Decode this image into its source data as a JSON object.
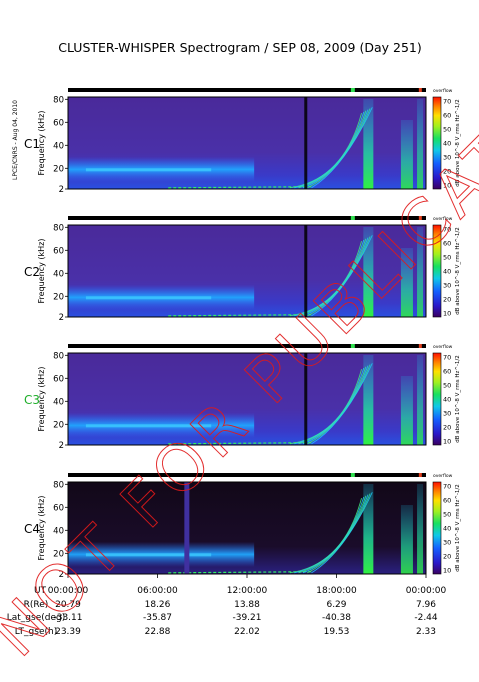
{
  "title": "CLUSTER-WHISPER Spectrogram / SEP 08, 2009 (Day 251)",
  "side_label": "LPCE/CNRS - Aug 04, 2010",
  "watermark": "NOT FOR PUBLICATION",
  "overflow_label": "overflow",
  "panels": [
    {
      "name": "C1",
      "label_color": "#000000"
    },
    {
      "name": "C2",
      "label_color": "#000000"
    },
    {
      "name": "C3",
      "label_color": "#1fae2a"
    },
    {
      "name": "C4",
      "label_color": "#000000"
    }
  ],
  "colorbar": {
    "label": "dB above 10^-8 V_rms Hz^-1/2",
    "ticks": [
      10,
      20,
      30,
      40,
      50,
      60,
      70
    ]
  },
  "chart_data": {
    "type": "heatmap",
    "title": "CLUSTER-WHISPER Spectrogram / SEP 08, 2009 (Day 251)",
    "xlabel": "UT",
    "ylabel": "Frequency (kHz)",
    "x_ticks": [
      "00:00:00",
      "06:00:00",
      "12:00:00",
      "18:00:00",
      "00:00:00"
    ],
    "y_ticks": [
      2,
      20,
      40,
      60,
      80
    ],
    "ylim": [
      2,
      82
    ],
    "colorscale": {
      "min": 10,
      "max": 70,
      "unit": "dB"
    }
  },
  "ephemeris": {
    "rows": [
      {
        "label": "UT",
        "values": [
          "00:00:00",
          "06:00:00",
          "12:00:00",
          "18:00:00",
          "00:00:00"
        ]
      },
      {
        "label": "R(Re)",
        "values": [
          "20.79",
          "18.26",
          "13.88",
          "6.29",
          "7.96"
        ]
      },
      {
        "label": "Lat_gse(deg)",
        "values": [
          "-33.11",
          "-35.87",
          "-39.21",
          "-40.38",
          "-2.44"
        ]
      },
      {
        "label": "LT_gse(h)",
        "values": [
          "23.39",
          "22.88",
          "22.02",
          "19.53",
          "2.33"
        ]
      }
    ]
  }
}
